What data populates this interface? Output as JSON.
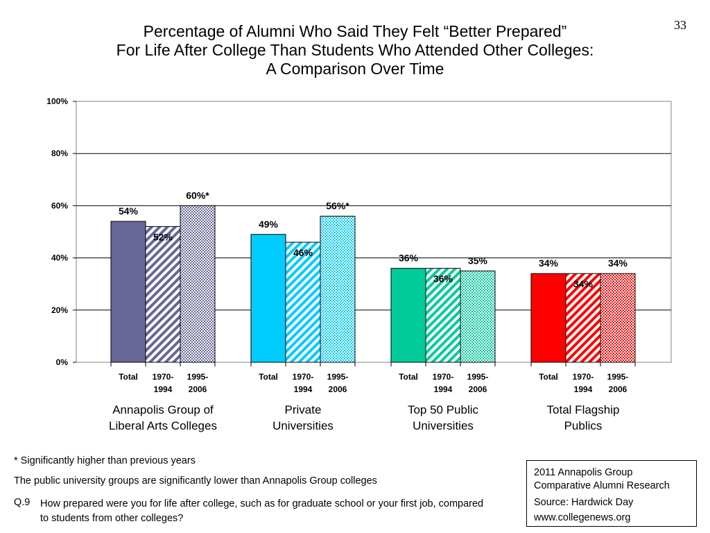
{
  "slide_number": "33",
  "title_lines": [
    "Percentage of Alumni Who Said They Felt “Better Prepared”",
    "For Life After College Than Students Who Attended Other Colleges:",
    "A Comparison Over Time"
  ],
  "chart_data": {
    "type": "bar",
    "title": "Percentage of Alumni Who Said They Felt “Better Prepared” For Life After College Than Students Who Attended Other Colleges: A Comparison Over Time",
    "ylim": [
      0,
      100
    ],
    "yticks": [
      "0%",
      "20%",
      "40%",
      "60%",
      "80%",
      "100%"
    ],
    "grid": true,
    "legend": "none",
    "groups": [
      {
        "label": "Annapolis Group of Liberal Arts Colleges",
        "label_lines": [
          "Annapolis Group of",
          "Liberal Arts Colleges"
        ],
        "color": "#666699",
        "bars": [
          {
            "category": [
              "Total"
            ],
            "value": 54,
            "label": "54%",
            "pattern": "solid"
          },
          {
            "category": [
              "1970-",
              "1994"
            ],
            "value": 52,
            "label": "52%",
            "pattern": "diagonal"
          },
          {
            "category": [
              "1995-",
              "2006"
            ],
            "value": 60,
            "label": "60%*",
            "pattern": "dots"
          }
        ]
      },
      {
        "label": "Private Universities",
        "label_lines": [
          "Private",
          "Universities"
        ],
        "color": "#00CCFF",
        "bars": [
          {
            "category": [
              "Total"
            ],
            "value": 49,
            "label": "49%",
            "pattern": "solid"
          },
          {
            "category": [
              "1970-",
              "1994"
            ],
            "value": 46,
            "label": "46%",
            "pattern": "diagonal"
          },
          {
            "category": [
              "1995-",
              "2006"
            ],
            "value": 56,
            "label": "56%*",
            "pattern": "dots"
          }
        ]
      },
      {
        "label": "Top 50 Public Universities",
        "label_lines": [
          "Top 50 Public",
          "Universities"
        ],
        "color": "#00CC99",
        "bars": [
          {
            "category": [
              "Total"
            ],
            "value": 36,
            "label": "36%",
            "pattern": "solid"
          },
          {
            "category": [
              "1970-",
              "1994"
            ],
            "value": 36,
            "label": "36%",
            "pattern": "diagonal"
          },
          {
            "category": [
              "1995-",
              "2006"
            ],
            "value": 35,
            "label": "35%",
            "pattern": "dots"
          }
        ]
      },
      {
        "label": "Total Flagship Publics",
        "label_lines": [
          "Total Flagship",
          "Publics"
        ],
        "color": "#FF0000",
        "bars": [
          {
            "category": [
              "Total"
            ],
            "value": 34,
            "label": "34%",
            "pattern": "solid"
          },
          {
            "category": [
              "1970-",
              "1994"
            ],
            "value": 34,
            "label": "34%",
            "pattern": "diagonal"
          },
          {
            "category": [
              "1995-",
              "2006"
            ],
            "value": 34,
            "label": "34%",
            "pattern": "dots"
          }
        ]
      }
    ]
  },
  "footnotes": {
    "significance": "* Significantly higher than previous years",
    "comparison": "The public university groups are significantly lower than Annapolis Group colleges",
    "question_number": "Q.9",
    "question_text": "How prepared were you for life after college, such as for graduate school or your first job, compared to students from other colleges?"
  },
  "source_box": {
    "line1": "2011 Annapolis Group",
    "line2": "Comparative Alumni Research",
    "line3": "Source: Hardwick Day",
    "line4": "www.collegenews.org"
  }
}
